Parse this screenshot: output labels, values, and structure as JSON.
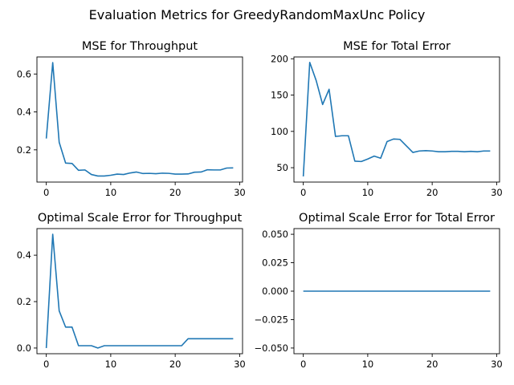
{
  "figure": {
    "title": "Evaluation Metrics for GreedyRandomMaxUnc Policy"
  },
  "chart_data": [
    {
      "type": "line",
      "title": "MSE for Throughput",
      "xlabel": "",
      "ylabel": "",
      "xlim": [
        -1.45,
        30.45
      ],
      "ylim": [
        0.03,
        0.69
      ],
      "xticks": [
        0,
        10,
        20,
        30
      ],
      "xtick_labels": [
        "0",
        "10",
        "20",
        "30"
      ],
      "yticks": [
        0.2,
        0.4,
        0.6
      ],
      "ytick_labels": [
        "0.2",
        "0.4",
        "0.6"
      ],
      "grid": false,
      "color": "#1f77b4",
      "x": [
        0,
        1,
        2,
        3,
        4,
        5,
        6,
        7,
        8,
        9,
        10,
        11,
        12,
        13,
        14,
        15,
        16,
        17,
        18,
        19,
        20,
        21,
        22,
        23,
        24,
        25,
        26,
        27,
        28,
        29
      ],
      "y": [
        0.26,
        0.66,
        0.24,
        0.13,
        0.128,
        0.092,
        0.094,
        0.07,
        0.062,
        0.062,
        0.066,
        0.072,
        0.07,
        0.078,
        0.083,
        0.075,
        0.076,
        0.074,
        0.077,
        0.076,
        0.072,
        0.072,
        0.073,
        0.082,
        0.083,
        0.095,
        0.094,
        0.094,
        0.104,
        0.105
      ]
    },
    {
      "type": "line",
      "title": "MSE for Total Error",
      "xlabel": "",
      "ylabel": "",
      "xlim": [
        -1.45,
        30.45
      ],
      "ylim": [
        30.2,
        202.5
      ],
      "xticks": [
        0,
        10,
        20,
        30
      ],
      "xtick_labels": [
        "0",
        "10",
        "20",
        "30"
      ],
      "yticks": [
        50,
        100,
        150,
        200
      ],
      "ytick_labels": [
        "50",
        "100",
        "150",
        "200"
      ],
      "grid": false,
      "color": "#1f77b4",
      "x": [
        0,
        1,
        2,
        3,
        4,
        5,
        6,
        7,
        8,
        9,
        10,
        11,
        12,
        13,
        14,
        15,
        16,
        17,
        18,
        19,
        20,
        21,
        22,
        23,
        24,
        25,
        26,
        27,
        28,
        29
      ],
      "y": [
        38,
        195,
        170,
        137,
        158,
        93,
        94,
        94,
        59,
        58.5,
        62,
        66,
        63,
        86,
        89.5,
        89,
        80,
        71,
        73,
        73.5,
        73,
        72,
        72,
        72.5,
        72.5,
        72,
        72.5,
        72,
        73,
        73
      ]
    },
    {
      "type": "line",
      "title": "Optimal Scale Error for Throughput",
      "xlabel": "",
      "ylabel": "",
      "xlim": [
        -1.45,
        30.45
      ],
      "ylim": [
        -0.0245,
        0.5145
      ],
      "xticks": [
        0,
        10,
        20,
        30
      ],
      "xtick_labels": [
        "0",
        "10",
        "20",
        "30"
      ],
      "yticks": [
        0.0,
        0.2,
        0.4
      ],
      "ytick_labels": [
        "0.0",
        "0.2",
        "0.4"
      ],
      "grid": false,
      "color": "#1f77b4",
      "x": [
        0,
        1,
        2,
        3,
        4,
        5,
        6,
        7,
        8,
        9,
        10,
        11,
        12,
        13,
        14,
        15,
        16,
        17,
        18,
        19,
        20,
        21,
        22,
        23,
        24,
        25,
        26,
        27,
        28,
        29
      ],
      "y": [
        0.0,
        0.49,
        0.16,
        0.09,
        0.09,
        0.01,
        0.01,
        0.01,
        0.0,
        0.01,
        0.01,
        0.01,
        0.01,
        0.01,
        0.01,
        0.01,
        0.01,
        0.01,
        0.01,
        0.01,
        0.01,
        0.01,
        0.04,
        0.04,
        0.04,
        0.04,
        0.04,
        0.04,
        0.04,
        0.04
      ]
    },
    {
      "type": "line",
      "title": "Optimal Scale Error for Total Error",
      "xlabel": "",
      "ylabel": "",
      "xlim": [
        -1.45,
        30.45
      ],
      "ylim": [
        -0.055,
        0.055
      ],
      "xticks": [
        0,
        10,
        20,
        30
      ],
      "xtick_labels": [
        "0",
        "10",
        "20",
        "30"
      ],
      "yticks": [
        -0.05,
        -0.025,
        0.0,
        0.025,
        0.05
      ],
      "ytick_labels": [
        "−0.050",
        "−0.025",
        "0.000",
        "0.025",
        "0.050"
      ],
      "grid": false,
      "color": "#1f77b4",
      "x": [
        0,
        1,
        2,
        3,
        4,
        5,
        6,
        7,
        8,
        9,
        10,
        11,
        12,
        13,
        14,
        15,
        16,
        17,
        18,
        19,
        20,
        21,
        22,
        23,
        24,
        25,
        26,
        27,
        28,
        29
      ],
      "y": [
        0,
        0,
        0,
        0,
        0,
        0,
        0,
        0,
        0,
        0,
        0,
        0,
        0,
        0,
        0,
        0,
        0,
        0,
        0,
        0,
        0,
        0,
        0,
        0,
        0,
        0,
        0,
        0,
        0,
        0
      ]
    }
  ]
}
